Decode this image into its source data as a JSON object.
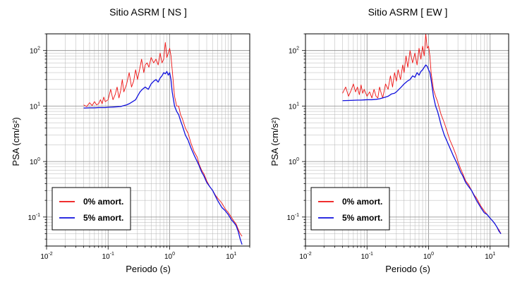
{
  "chart_data": [
    {
      "type": "line",
      "title": "Sitio ASRM [ NS ]",
      "xlabel": "Periodo (s)",
      "ylabel": "PSA (cm/s²)",
      "xscale": "log",
      "yscale": "log",
      "xlim": [
        0.01,
        20
      ],
      "ylim": [
        0.03,
        200
      ],
      "grid": true,
      "legend_position": "bottom-left",
      "series": [
        {
          "name": "0% amort.",
          "color": "#ee1111",
          "x": [
            0.04,
            0.045,
            0.05,
            0.055,
            0.06,
            0.065,
            0.07,
            0.075,
            0.08,
            0.085,
            0.09,
            0.1,
            0.11,
            0.12,
            0.13,
            0.14,
            0.15,
            0.16,
            0.17,
            0.18,
            0.2,
            0.22,
            0.24,
            0.26,
            0.28,
            0.3,
            0.32,
            0.35,
            0.38,
            0.4,
            0.43,
            0.46,
            0.5,
            0.55,
            0.6,
            0.65,
            0.7,
            0.75,
            0.8,
            0.85,
            0.9,
            0.95,
            1.0,
            1.05,
            1.1,
            1.2,
            1.3,
            1.4,
            1.5,
            1.6,
            1.8,
            2.0,
            2.2,
            2.5,
            2.8,
            3.0,
            3.3,
            3.6,
            4.0,
            4.5,
            5.0,
            5.5,
            6.0,
            7.0,
            8.0,
            9.0,
            10.0,
            11.0,
            12.0,
            13.0,
            14.0,
            15.0
          ],
          "y": [
            10.5,
            9.8,
            11.5,
            10.2,
            12,
            10.5,
            11,
            13,
            11,
            14.5,
            12,
            13,
            20,
            13,
            16,
            22,
            14,
            19,
            30,
            18,
            25,
            40,
            22,
            28,
            45,
            30,
            42,
            70,
            40,
            55,
            60,
            50,
            75,
            60,
            70,
            55,
            90,
            60,
            70,
            140,
            75,
            90,
            110,
            80,
            45,
            15,
            10,
            10,
            7,
            6,
            4,
            3.2,
            2.2,
            1.5,
            1.2,
            0.9,
            0.7,
            0.6,
            0.45,
            0.35,
            0.3,
            0.25,
            0.22,
            0.18,
            0.14,
            0.12,
            0.1,
            0.085,
            0.075,
            0.06,
            0.05,
            0.045
          ]
        },
        {
          "name": "5% amort.",
          "color": "#1111dd",
          "x": [
            0.04,
            0.05,
            0.06,
            0.07,
            0.08,
            0.09,
            0.1,
            0.12,
            0.14,
            0.16,
            0.18,
            0.2,
            0.22,
            0.25,
            0.28,
            0.3,
            0.33,
            0.36,
            0.4,
            0.45,
            0.5,
            0.55,
            0.6,
            0.65,
            0.7,
            0.75,
            0.8,
            0.85,
            0.9,
            0.95,
            1.0,
            1.05,
            1.1,
            1.2,
            1.3,
            1.4,
            1.5,
            1.6,
            1.8,
            2.0,
            2.2,
            2.5,
            2.8,
            3.0,
            3.3,
            3.6,
            4.0,
            4.5,
            5.0,
            6.0,
            7.0,
            8.0,
            9.0,
            10.0,
            11.0,
            12.0,
            13.0,
            14.0,
            15.0
          ],
          "y": [
            9.2,
            9.3,
            9.3,
            9.4,
            9.4,
            9.4,
            9.5,
            9.6,
            9.7,
            9.8,
            10.2,
            10.5,
            11,
            12,
            13,
            15,
            18,
            20,
            22,
            20,
            25,
            28,
            30,
            27,
            32,
            35,
            40,
            38,
            42,
            36,
            40,
            30,
            18,
            10,
            8,
            7,
            5.5,
            4.5,
            3,
            2.4,
            1.8,
            1.3,
            1.0,
            0.85,
            0.65,
            0.55,
            0.42,
            0.35,
            0.3,
            0.2,
            0.15,
            0.13,
            0.11,
            0.09,
            0.08,
            0.07,
            0.055,
            0.04,
            0.032
          ]
        }
      ],
      "xticks": [
        {
          "base": "10",
          "exp": "-2",
          "value": 0.01
        },
        {
          "base": "10",
          "exp": "-1",
          "value": 0.1
        },
        {
          "base": "10",
          "exp": "0",
          "value": 1
        },
        {
          "base": "10",
          "exp": "1",
          "value": 10
        }
      ],
      "yticks": [
        {
          "base": "10",
          "exp": "-1",
          "value": 0.1
        },
        {
          "base": "10",
          "exp": "0",
          "value": 1
        },
        {
          "base": "10",
          "exp": "1",
          "value": 10
        },
        {
          "base": "10",
          "exp": "2",
          "value": 100
        }
      ]
    },
    {
      "type": "line",
      "title": "Sitio ASRM [ EW ]",
      "xlabel": "Periodo (s)",
      "ylabel": "PSA (cm/s²)",
      "xscale": "log",
      "yscale": "log",
      "xlim": [
        0.01,
        20
      ],
      "ylim": [
        0.03,
        200
      ],
      "grid": true,
      "legend_position": "bottom-left",
      "series": [
        {
          "name": "0% amort.",
          "color": "#ee1111",
          "x": [
            0.04,
            0.045,
            0.05,
            0.055,
            0.06,
            0.065,
            0.07,
            0.075,
            0.08,
            0.085,
            0.09,
            0.1,
            0.11,
            0.12,
            0.13,
            0.14,
            0.15,
            0.16,
            0.17,
            0.18,
            0.2,
            0.22,
            0.24,
            0.26,
            0.28,
            0.3,
            0.32,
            0.35,
            0.38,
            0.4,
            0.43,
            0.46,
            0.5,
            0.55,
            0.6,
            0.65,
            0.7,
            0.75,
            0.8,
            0.85,
            0.9,
            0.95,
            1.0,
            1.05,
            1.1,
            1.2,
            1.3,
            1.4,
            1.5,
            1.6,
            1.8,
            2.0,
            2.2,
            2.5,
            2.8,
            3.0,
            3.3,
            3.6,
            4.0,
            4.5,
            5.0,
            5.5,
            6.0,
            7.0,
            8.0,
            9.0,
            10.0,
            11.0,
            12.0,
            13.0,
            14.0,
            15.0
          ],
          "y": [
            17,
            22,
            15,
            19,
            25,
            18,
            22,
            16,
            24,
            17,
            20,
            15,
            18,
            14,
            20,
            15,
            14,
            22,
            17,
            14,
            25,
            20,
            35,
            22,
            40,
            28,
            45,
            30,
            55,
            40,
            80,
            50,
            100,
            60,
            90,
            55,
            110,
            70,
            120,
            80,
            200,
            110,
            120,
            80,
            40,
            20,
            15,
            12,
            9,
            7,
            5,
            3.5,
            2.5,
            1.8,
            1.3,
            1.0,
            0.75,
            0.6,
            0.45,
            0.38,
            0.3,
            0.25,
            0.22,
            0.16,
            0.13,
            0.11,
            0.095,
            0.085,
            0.075,
            0.065,
            0.058,
            0.05
          ]
        },
        {
          "name": "5% amort.",
          "color": "#1111dd",
          "x": [
            0.04,
            0.05,
            0.06,
            0.07,
            0.08,
            0.09,
            0.1,
            0.12,
            0.14,
            0.16,
            0.18,
            0.2,
            0.22,
            0.25,
            0.28,
            0.3,
            0.33,
            0.36,
            0.4,
            0.45,
            0.5,
            0.55,
            0.6,
            0.65,
            0.7,
            0.75,
            0.8,
            0.85,
            0.9,
            0.95,
            1.0,
            1.05,
            1.1,
            1.2,
            1.3,
            1.4,
            1.5,
            1.6,
            1.8,
            2.0,
            2.2,
            2.5,
            2.8,
            3.0,
            3.3,
            3.6,
            4.0,
            4.5,
            5.0,
            6.0,
            7.0,
            8.0,
            9.0,
            10.0,
            11.0,
            12.0,
            13.0,
            14.0,
            15.0
          ],
          "y": [
            12.5,
            12.6,
            12.7,
            12.8,
            12.8,
            12.9,
            13,
            13,
            13.2,
            13.5,
            14,
            14.5,
            15,
            16.5,
            17,
            18,
            20,
            22,
            25,
            28,
            30,
            35,
            33,
            40,
            36,
            42,
            45,
            50,
            55,
            52,
            45,
            40,
            30,
            15,
            10,
            8,
            6,
            4.5,
            3,
            2.3,
            1.8,
            1.3,
            1.0,
            0.85,
            0.65,
            0.55,
            0.42,
            0.35,
            0.3,
            0.2,
            0.15,
            0.12,
            0.11,
            0.095,
            0.085,
            0.075,
            0.065,
            0.055,
            0.05
          ]
        }
      ],
      "xticks": [
        {
          "base": "10",
          "exp": "-2",
          "value": 0.01
        },
        {
          "base": "10",
          "exp": "-1",
          "value": 0.1
        },
        {
          "base": "10",
          "exp": "0",
          "value": 1
        },
        {
          "base": "10",
          "exp": "1",
          "value": 10
        }
      ],
      "yticks": [
        {
          "base": "10",
          "exp": "-1",
          "value": 0.1
        },
        {
          "base": "10",
          "exp": "0",
          "value": 1
        },
        {
          "base": "10",
          "exp": "1",
          "value": 10
        },
        {
          "base": "10",
          "exp": "2",
          "value": 100
        }
      ]
    }
  ]
}
